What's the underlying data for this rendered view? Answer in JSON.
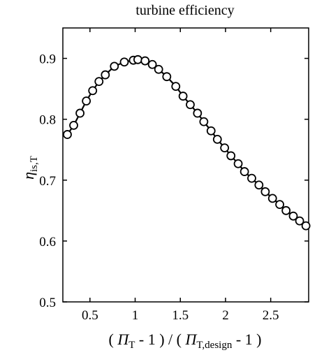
{
  "chart_data": {
    "type": "line",
    "title": "turbine efficiency",
    "xlabel": {
      "open": "( ",
      "pi1": "Π",
      "sub1": "T",
      "mid": " - 1 ) / ( ",
      "pi2": "Π",
      "sub2": "T,design",
      "close": " - 1 )"
    },
    "ylabel": {
      "eta": "η",
      "sub": "is,T"
    },
    "xlim": [
      0.2,
      2.92
    ],
    "ylim": [
      0.5,
      0.95
    ],
    "xticks": [
      0.5,
      1,
      1.5,
      2,
      2.5
    ],
    "yticks": [
      0.5,
      0.6,
      0.7,
      0.8,
      0.9
    ],
    "xtick_labels": [
      "0.5",
      "1",
      "1.5",
      "2",
      "2.5"
    ],
    "ytick_labels": [
      "0.5",
      "0.6",
      "0.7",
      "0.8",
      "0.9"
    ],
    "grid": false,
    "marker": "open-circle",
    "line_color": "#000000",
    "series": [
      {
        "x": [
          0.25,
          0.32,
          0.39,
          0.46,
          0.53,
          0.6,
          0.67,
          0.77,
          0.88,
          0.98,
          1.03,
          1.11,
          1.19,
          1.26,
          1.35,
          1.45,
          1.53,
          1.61,
          1.69,
          1.76,
          1.84,
          1.91,
          1.99,
          2.06,
          2.14,
          2.21,
          2.29,
          2.37,
          2.44,
          2.52,
          2.6,
          2.67,
          2.75,
          2.82,
          2.89
        ],
        "y": [
          0.775,
          0.79,
          0.81,
          0.83,
          0.847,
          0.862,
          0.873,
          0.887,
          0.894,
          0.897,
          0.898,
          0.896,
          0.89,
          0.882,
          0.87,
          0.854,
          0.838,
          0.824,
          0.81,
          0.796,
          0.781,
          0.767,
          0.753,
          0.74,
          0.727,
          0.714,
          0.703,
          0.692,
          0.681,
          0.67,
          0.66,
          0.65,
          0.641,
          0.633,
          0.625
        ]
      }
    ]
  }
}
